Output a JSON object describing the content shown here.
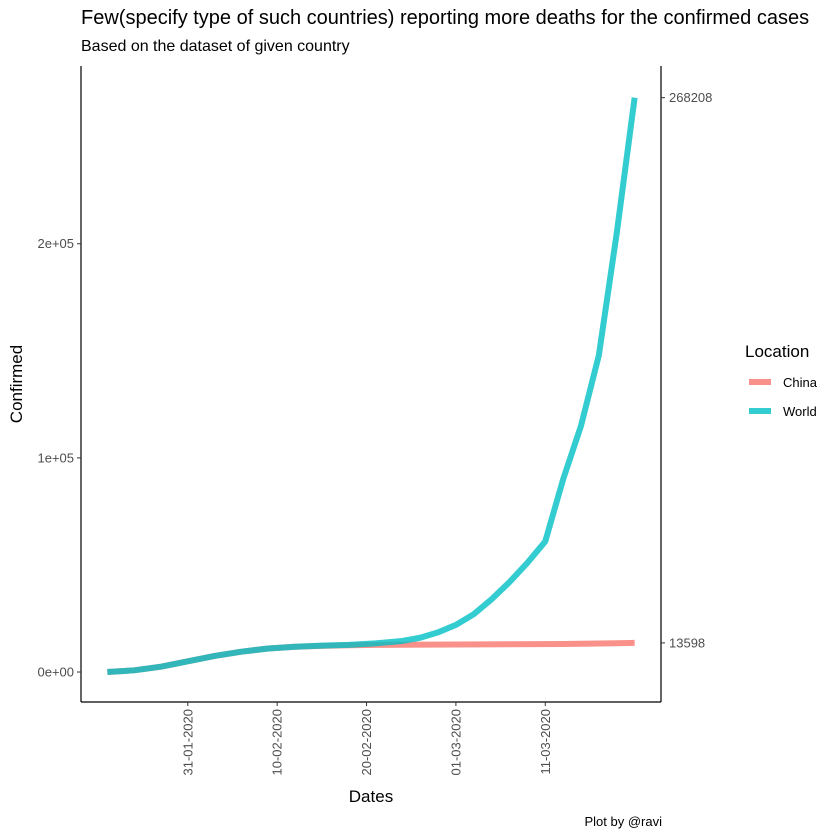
{
  "chart_data": {
    "type": "line",
    "title": "Few(specify type of such countries) reporting more deaths for the confirmed cases",
    "subtitle": "Based on the dataset of given country",
    "xlabel": "Dates",
    "ylabel": "Confirmed",
    "caption": "Plot by @ravi",
    "ylim": [
      -14000,
      283000
    ],
    "y_ticks": [
      0,
      100000,
      200000
    ],
    "y_tick_labels": [
      "0e+00",
      "1e+05",
      "2e+05"
    ],
    "x_range": [
      "2020-01-22",
      "2020-03-21"
    ],
    "x_ticks": [
      "2020-01-31",
      "2020-02-10",
      "2020-02-20",
      "2020-03-01",
      "2020-03-11"
    ],
    "x_tick_labels": [
      "31-01-2020",
      "10-02-2020",
      "20-02-2020",
      "01-03-2020",
      "11-03-2020"
    ],
    "secondary_y_ticks": [
      13598,
      268208
    ],
    "secondary_y_tick_labels": [
      "13598",
      "268208"
    ],
    "grid": false,
    "legend": {
      "title": "Location",
      "position": "right"
    },
    "series": [
      {
        "name": "China",
        "color": "#f8766d",
        "points": [
          [
            "2020-01-22",
            0
          ],
          [
            "2020-01-25",
            800
          ],
          [
            "2020-01-28",
            2500
          ],
          [
            "2020-01-31",
            5000
          ],
          [
            "2020-02-03",
            7500
          ],
          [
            "2020-02-06",
            9500
          ],
          [
            "2020-02-09",
            11000
          ],
          [
            "2020-02-12",
            11800
          ],
          [
            "2020-02-15",
            12200
          ],
          [
            "2020-02-18",
            12500
          ],
          [
            "2020-02-21",
            12650
          ],
          [
            "2020-02-24",
            12750
          ],
          [
            "2020-02-27",
            12800
          ],
          [
            "2020-03-01",
            12850
          ],
          [
            "2020-03-04",
            12900
          ],
          [
            "2020-03-07",
            12950
          ],
          [
            "2020-03-10",
            13000
          ],
          [
            "2020-03-13",
            13100
          ],
          [
            "2020-03-16",
            13250
          ],
          [
            "2020-03-19",
            13450
          ],
          [
            "2020-03-21",
            13598
          ]
        ]
      },
      {
        "name": "World",
        "color": "#00bfc4",
        "points": [
          [
            "2020-01-22",
            0
          ],
          [
            "2020-01-25",
            800
          ],
          [
            "2020-01-28",
            2500
          ],
          [
            "2020-01-31",
            5000
          ],
          [
            "2020-02-03",
            7500
          ],
          [
            "2020-02-06",
            9500
          ],
          [
            "2020-02-09",
            11000
          ],
          [
            "2020-02-12",
            11800
          ],
          [
            "2020-02-15",
            12300
          ],
          [
            "2020-02-18",
            12700
          ],
          [
            "2020-02-21",
            13400
          ],
          [
            "2020-02-24",
            14500
          ],
          [
            "2020-02-26",
            16000
          ],
          [
            "2020-02-28",
            18500
          ],
          [
            "2020-03-01",
            22000
          ],
          [
            "2020-03-03",
            27000
          ],
          [
            "2020-03-05",
            34000
          ],
          [
            "2020-03-07",
            42000
          ],
          [
            "2020-03-09",
            51000
          ],
          [
            "2020-03-11",
            61000
          ],
          [
            "2020-03-13",
            90000
          ],
          [
            "2020-03-15",
            115000
          ],
          [
            "2020-03-17",
            148000
          ],
          [
            "2020-03-19",
            205000
          ],
          [
            "2020-03-21",
            268208
          ]
        ]
      }
    ]
  }
}
